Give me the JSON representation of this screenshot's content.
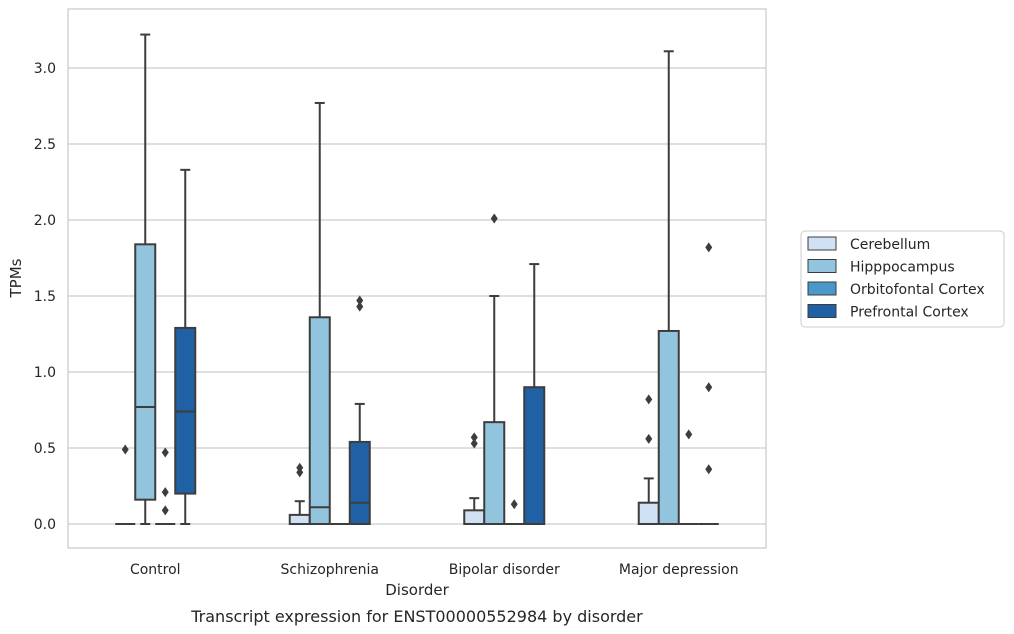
{
  "chart_data": {
    "type": "box",
    "caption": "Transcript expression for ENST00000552984 by disorder",
    "xlabel": "Disorder",
    "ylabel": "TPMs",
    "ylim": [
      -0.16,
      3.37
    ],
    "yticks": [
      "0.0",
      "0.5",
      "1.0",
      "1.5",
      "2.0",
      "2.5",
      "3.0"
    ],
    "grid": "horizontal",
    "legend_position": "right",
    "categories": [
      "Control",
      "Schizophrenia",
      "Bipolar disorder",
      "Major depression"
    ],
    "series": [
      {
        "name": "Cerebellum",
        "color": "#cfe1f2",
        "boxes": [
          {
            "q1": 0,
            "median": 0,
            "q3": 0,
            "whisker_low": 0,
            "whisker_high": 0,
            "outliers": [
              0.49
            ]
          },
          {
            "q1": 0,
            "median": 0,
            "q3": 0.06,
            "whisker_low": 0,
            "whisker_high": 0.15,
            "outliers": [
              0.34,
              0.37
            ]
          },
          {
            "q1": 0,
            "median": 0,
            "q3": 0.09,
            "whisker_low": 0,
            "whisker_high": 0.17,
            "outliers": [
              0.53,
              0.57
            ]
          },
          {
            "q1": 0,
            "median": 0,
            "q3": 0.14,
            "whisker_low": 0,
            "whisker_high": 0.3,
            "outliers": [
              0.56,
              0.82
            ]
          }
        ]
      },
      {
        "name": "Hipppocampus",
        "color": "#93c4de",
        "boxes": [
          {
            "q1": 0.16,
            "median": 0.77,
            "q3": 1.84,
            "whisker_low": 0,
            "whisker_high": 3.22,
            "outliers": []
          },
          {
            "q1": 0,
            "median": 0.11,
            "q3": 1.36,
            "whisker_low": 0,
            "whisker_high": 2.77,
            "outliers": []
          },
          {
            "q1": 0,
            "median": 0,
            "q3": 0.67,
            "whisker_low": 0,
            "whisker_high": 1.5,
            "outliers": [
              2.01
            ]
          },
          {
            "q1": 0,
            "median": 0,
            "q3": 1.27,
            "whisker_low": 0,
            "whisker_high": 3.11,
            "outliers": []
          }
        ]
      },
      {
        "name": "Orbitofontal Cortex",
        "color": "#4a98c9",
        "boxes": [
          {
            "q1": 0,
            "median": 0,
            "q3": 0,
            "whisker_low": 0,
            "whisker_high": 0,
            "outliers": [
              0.09,
              0.21,
              0.47
            ]
          },
          {
            "q1": 0,
            "median": 0,
            "q3": 0,
            "whisker_low": 0,
            "whisker_high": 0,
            "outliers": []
          },
          {
            "q1": 0,
            "median": 0,
            "q3": 0,
            "whisker_low": 0,
            "whisker_high": 0,
            "outliers": [
              0.13
            ]
          },
          {
            "q1": 0,
            "median": 0,
            "q3": 0,
            "whisker_low": 0,
            "whisker_high": 0,
            "outliers": [
              0.59
            ]
          }
        ]
      },
      {
        "name": "Prefrontal Cortex",
        "color": "#2060a5",
        "boxes": [
          {
            "q1": 0.2,
            "median": 0.74,
            "q3": 1.29,
            "whisker_low": 0,
            "whisker_high": 2.33,
            "outliers": []
          },
          {
            "q1": 0,
            "median": 0.14,
            "q3": 0.54,
            "whisker_low": 0,
            "whisker_high": 0.79,
            "outliers": [
              1.43,
              1.47
            ]
          },
          {
            "q1": 0,
            "median": 0,
            "q3": 0.9,
            "whisker_low": 0,
            "whisker_high": 1.71,
            "outliers": []
          },
          {
            "q1": 0,
            "median": 0,
            "q3": 0,
            "whisker_low": 0,
            "whisker_high": 0,
            "outliers": [
              0.36,
              0.9,
              1.82
            ]
          }
        ]
      }
    ]
  }
}
